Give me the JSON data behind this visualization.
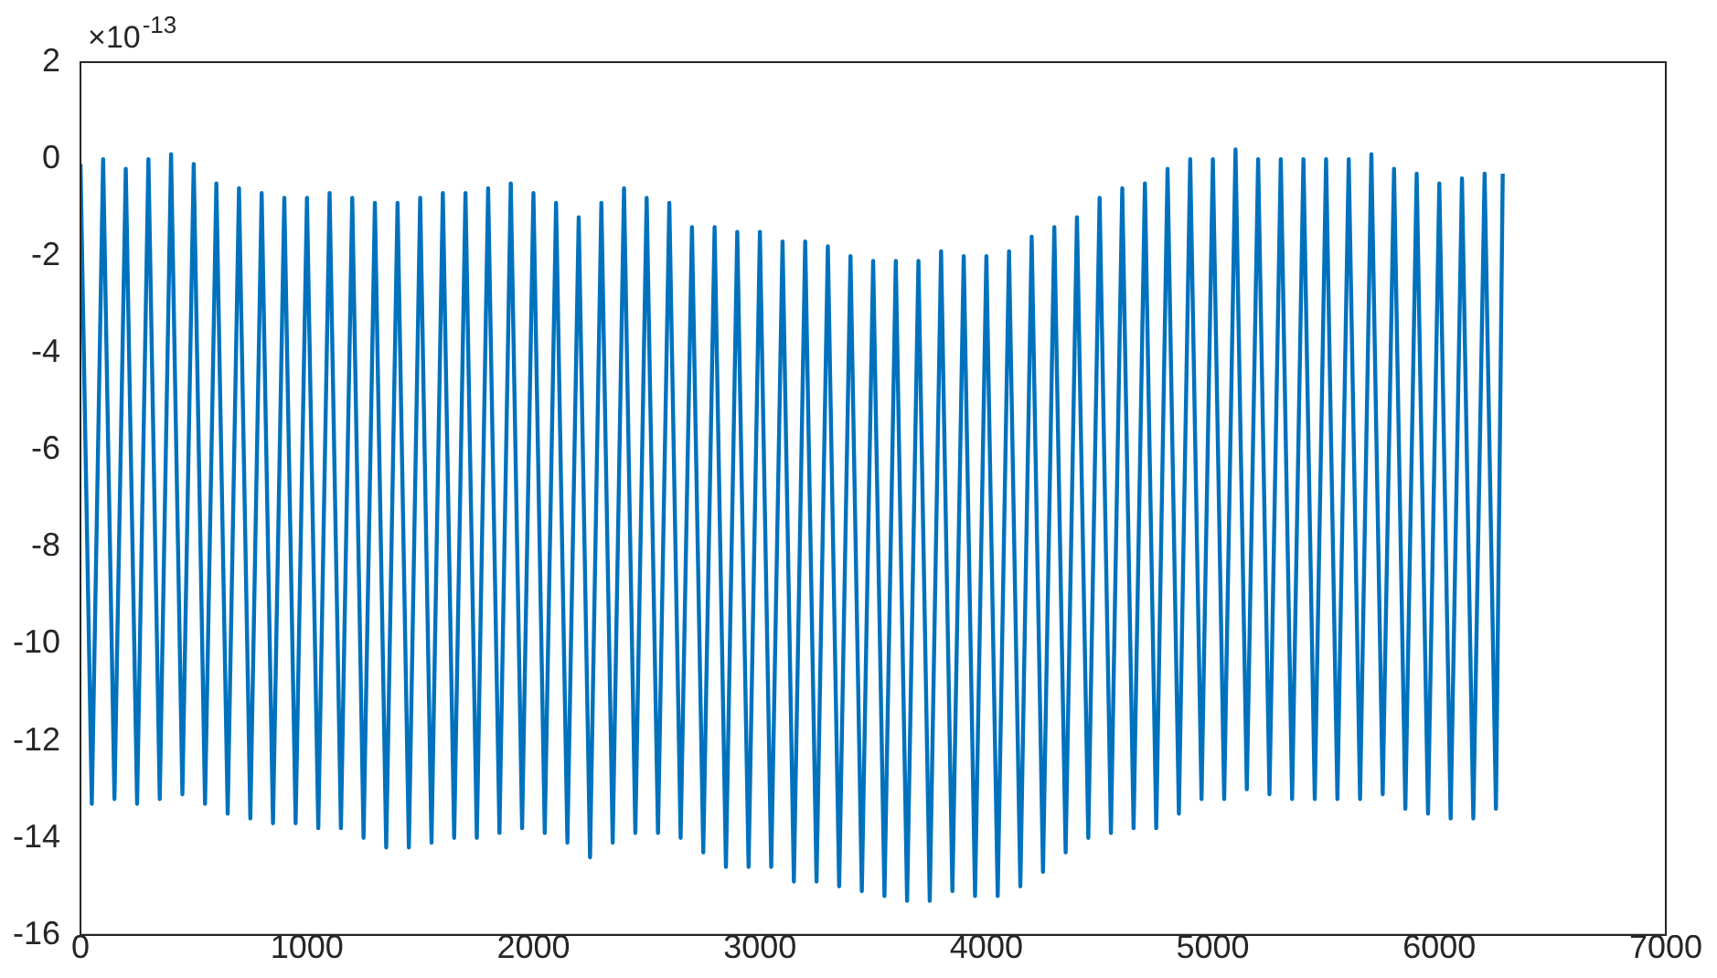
{
  "chart_data": {
    "type": "line",
    "x": [
      0,
      50,
      100,
      150,
      200,
      250,
      300,
      350,
      400,
      450,
      500,
      550,
      600,
      650,
      700,
      750,
      800,
      850,
      900,
      950,
      1000,
      1050,
      1100,
      1150,
      1200,
      1250,
      1300,
      1350,
      1400,
      1450,
      1500,
      1550,
      1600,
      1650,
      1700,
      1750,
      1800,
      1850,
      1900,
      1950,
      2000,
      2050,
      2100,
      2150,
      2200,
      2250,
      2300,
      2350,
      2400,
      2450,
      2500,
      2550,
      2600,
      2650,
      2700,
      2750,
      2800,
      2850,
      2900,
      2950,
      3000,
      3050,
      3100,
      3150,
      3200,
      3250,
      3300,
      3350,
      3400,
      3450,
      3500,
      3550,
      3600,
      3650,
      3700,
      3750,
      3800,
      3850,
      3900,
      3950,
      4000,
      4050,
      4100,
      4150,
      4200,
      4250,
      4300,
      4350,
      4400,
      4450,
      4500,
      4550,
      4600,
      4650,
      4700,
      4750,
      4800,
      4850,
      4900,
      4950,
      5000,
      5050,
      5100,
      5150,
      5200,
      5250,
      5300,
      5350,
      5400,
      5450,
      5500,
      5550,
      5600,
      5650,
      5700,
      5750,
      5800,
      5850,
      5900,
      5950,
      6000,
      6050,
      6100,
      6150,
      6200,
      6250,
      6280
    ],
    "series": [
      {
        "color": "#0072bd",
        "values": [
          -0.1,
          -13.3,
          0,
          -13.2,
          -0.2,
          -13.3,
          0,
          -13.2,
          0.1,
          -13.1,
          -0.1,
          -13.3,
          -0.5,
          -13.5,
          -0.6,
          -13.6,
          -0.7,
          -13.7,
          -0.8,
          -13.7,
          -0.8,
          -13.8,
          -0.7,
          -13.8,
          -0.8,
          -14.0,
          -0.9,
          -14.2,
          -0.9,
          -14.2,
          -0.8,
          -14.1,
          -0.7,
          -14.0,
          -0.7,
          -14.0,
          -0.6,
          -13.9,
          -0.5,
          -13.8,
          -0.7,
          -13.9,
          -0.9,
          -14.1,
          -1.2,
          -14.4,
          -0.9,
          -14.1,
          -0.6,
          -13.9,
          -0.8,
          -13.9,
          -0.9,
          -14.0,
          -1.4,
          -14.3,
          -1.4,
          -14.6,
          -1.5,
          -14.6,
          -1.5,
          -14.6,
          -1.7,
          -14.9,
          -1.7,
          -14.9,
          -1.8,
          -15.0,
          -2.0,
          -15.1,
          -2.1,
          -15.2,
          -2.1,
          -15.3,
          -2.1,
          -15.3,
          -1.9,
          -15.1,
          -2.0,
          -15.2,
          -2.0,
          -15.2,
          -1.9,
          -15.0,
          -1.6,
          -14.7,
          -1.4,
          -14.3,
          -1.2,
          -14.0,
          -0.8,
          -13.9,
          -0.6,
          -13.8,
          -0.5,
          -13.8,
          -0.2,
          -13.5,
          0,
          -13.2,
          0,
          -13.2,
          0.2,
          -13.0,
          0,
          -13.1,
          0,
          -13.2,
          0,
          -13.2,
          0,
          -13.2,
          0,
          -13.2,
          0.1,
          -13.1,
          -0.2,
          -13.4,
          -0.3,
          -13.5,
          -0.5,
          -13.6,
          -0.4,
          -13.6,
          -0.3,
          -13.4,
          -0.3
        ]
      }
    ],
    "xlim": [
      0,
      7000
    ],
    "xticks": [
      0,
      1000,
      2000,
      3000,
      4000,
      5000,
      6000,
      7000
    ],
    "ylim": [
      -16,
      2
    ],
    "yticks": [
      -16,
      -14,
      -12,
      -10,
      -8,
      -6,
      -4,
      -2,
      0,
      2
    ],
    "annotations": [
      "×10$^{-13}$"
    ],
    "grid": false,
    "legend": false,
    "marker": "none",
    "line_style": "solid"
  }
}
